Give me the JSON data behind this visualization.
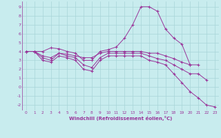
{
  "xlabel": "Windchill (Refroidissement éolien,°C)",
  "background_color": "#c8ecee",
  "grid_color": "#a8d4d8",
  "line_color": "#993399",
  "xlim": [
    -0.5,
    23.5
  ],
  "ylim": [
    -2.6,
    9.6
  ],
  "xticks": [
    0,
    1,
    2,
    3,
    4,
    5,
    6,
    7,
    8,
    9,
    10,
    11,
    12,
    13,
    14,
    15,
    16,
    17,
    18,
    19,
    20,
    21,
    22,
    23
  ],
  "yticks": [
    -2,
    -1,
    0,
    1,
    2,
    3,
    4,
    5,
    6,
    7,
    8,
    9
  ],
  "series": [
    [
      4.0,
      4.0,
      4.0,
      4.4,
      4.3,
      4.0,
      3.8,
      3.0,
      3.0,
      4.0,
      4.2,
      4.5,
      5.5,
      7.0,
      9.0,
      9.0,
      8.5,
      6.5,
      5.5,
      4.8,
      2.5,
      null,
      null,
      null
    ],
    [
      4.0,
      4.0,
      3.5,
      3.3,
      3.8,
      3.7,
      3.5,
      3.3,
      3.3,
      3.8,
      4.0,
      4.0,
      4.0,
      4.0,
      4.0,
      3.8,
      3.8,
      3.5,
      3.2,
      2.8,
      2.5,
      2.5,
      null,
      null
    ],
    [
      4.0,
      4.0,
      3.3,
      3.0,
      3.8,
      3.5,
      3.3,
      2.5,
      2.2,
      3.3,
      3.8,
      3.8,
      3.8,
      3.8,
      3.8,
      3.5,
      3.2,
      3.0,
      2.5,
      2.0,
      1.5,
      1.5,
      0.8,
      null
    ],
    [
      4.0,
      4.0,
      3.0,
      2.8,
      3.5,
      3.3,
      3.0,
      2.0,
      1.8,
      3.0,
      3.5,
      3.5,
      3.5,
      3.5,
      3.5,
      3.0,
      2.8,
      2.5,
      1.5,
      0.5,
      -0.5,
      -1.2,
      -2.0,
      -2.2
    ]
  ]
}
